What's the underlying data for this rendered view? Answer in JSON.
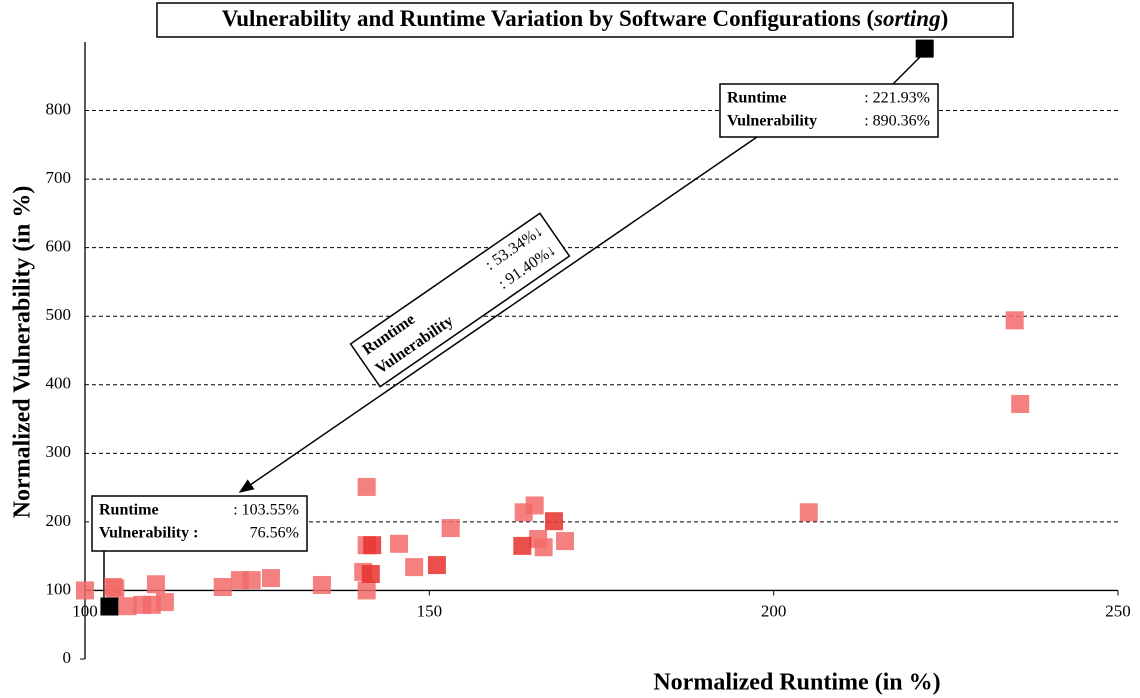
{
  "chart_data": {
    "type": "scatter",
    "title": [
      "Vulnerability and Runtime Variation by Software Configurations (",
      "sorting",
      ")"
    ],
    "x_label": "Normalized Runtime (in %)",
    "y_label": "Normalized Vulnerability (in %)",
    "xlim": [
      100,
      250
    ],
    "xticks": [
      100,
      150,
      200,
      250
    ],
    "ylim": [
      0,
      900
    ],
    "yticks": [
      0,
      100,
      200,
      300,
      400,
      500,
      600,
      700,
      800
    ],
    "grid": true,
    "series": [
      {
        "color": "#f26a6a",
        "x": [
          100,
          104.1,
          104.4,
          106.2,
          108.3,
          109.7,
          110.3,
          111.6,
          120,
          122.5,
          124.2,
          127,
          134.4,
          140.9,
          140.9,
          140.4,
          140.9,
          145.6,
          147.8,
          153.1,
          163.7,
          165.3,
          165.8,
          166.6,
          169.7,
          205.1,
          235,
          235.8
        ],
        "values": [
          100,
          105,
          103,
          77,
          79,
          79,
          109,
          83,
          105,
          115,
          115,
          118,
          108,
          251,
          166,
          127,
          100,
          168,
          134,
          191,
          214,
          224,
          175,
          163,
          172,
          214,
          494,
          372
        ]
      },
      {
        "color": "#e8302c",
        "x": [
          141.5,
          141.7,
          151.1,
          163.5,
          168.1
        ],
        "values": [
          124,
          166,
          137,
          165,
          201
        ]
      },
      {
        "color": "#000000",
        "x": [
          103.55,
          221.93
        ],
        "values": [
          76.56,
          890.36
        ]
      }
    ],
    "annotations": [
      {
        "lines": [
          [
            "Runtime",
            ": 221.93%"
          ],
          [
            "Vulnerability",
            ": 890.36%"
          ]
        ]
      },
      {
        "lines": [
          [
            "Runtime",
            ": 53.34%↓"
          ],
          [
            "Vulnerability",
            ": 91.40%↓"
          ]
        ]
      },
      {
        "lines": [
          [
            "Runtime",
            ": 103.55%"
          ],
          [
            "Vulnerability :",
            "76.56%"
          ]
        ]
      }
    ]
  }
}
